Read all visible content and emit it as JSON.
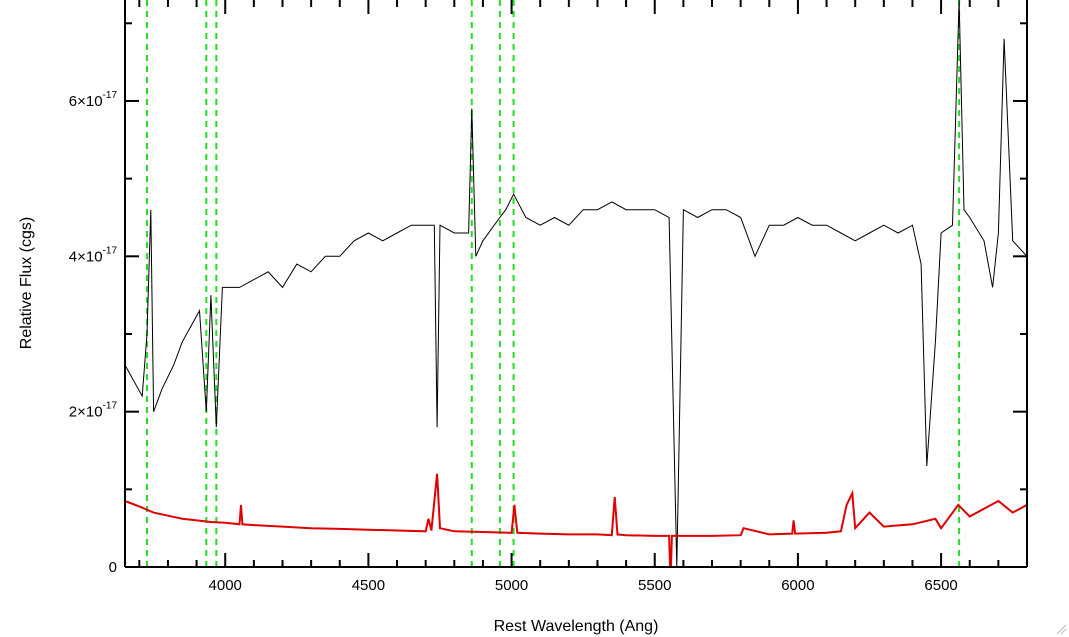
{
  "chart_data": {
    "type": "line",
    "xlabel": "Rest Wavelength (Ang)",
    "ylabel": "Relative Flux (cgs)",
    "xlim": [
      3650,
      6800
    ],
    "ylim": [
      0,
      7.3e-17
    ],
    "x_ticks": [
      4000,
      4500,
      5000,
      5500,
      6000,
      6500
    ],
    "y_ticks": [
      {
        "value": 0,
        "mantissa": "0",
        "exponent": ""
      },
      {
        "value": 2e-17,
        "mantissa": "2×10",
        "exponent": "-17"
      },
      {
        "value": 4e-17,
        "mantissa": "4×10",
        "exponent": "-17"
      },
      {
        "value": 6e-17,
        "mantissa": "6×10",
        "exponent": "-17"
      }
    ],
    "reference_lines_x": [
      3727,
      3934,
      3969,
      4861,
      4959,
      5007,
      6563
    ],
    "series": [
      {
        "color": "#000000",
        "points": [
          [
            3650,
            2.6e-17
          ],
          [
            3680,
            2.4e-17
          ],
          [
            3710,
            2.2e-17
          ],
          [
            3727,
            3e-17
          ],
          [
            3740,
            4.6e-17
          ],
          [
            3750,
            2e-17
          ],
          [
            3780,
            2.3e-17
          ],
          [
            3820,
            2.6e-17
          ],
          [
            3850,
            2.9e-17
          ],
          [
            3880,
            3.1e-17
          ],
          [
            3910,
            3.3e-17
          ],
          [
            3934,
            2e-17
          ],
          [
            3950,
            3.5e-17
          ],
          [
            3969,
            1.8e-17
          ],
          [
            3990,
            3.6e-17
          ],
          [
            4050,
            3.6e-17
          ],
          [
            4100,
            3.7e-17
          ],
          [
            4150,
            3.8e-17
          ],
          [
            4200,
            3.6e-17
          ],
          [
            4250,
            3.9e-17
          ],
          [
            4300,
            3.8e-17
          ],
          [
            4350,
            4e-17
          ],
          [
            4400,
            4e-17
          ],
          [
            4450,
            4.2e-17
          ],
          [
            4500,
            4.3e-17
          ],
          [
            4550,
            4.2e-17
          ],
          [
            4600,
            4.3e-17
          ],
          [
            4650,
            4.4e-17
          ],
          [
            4700,
            4.4e-17
          ],
          [
            4730,
            4.4e-17
          ],
          [
            4740,
            1.8e-17
          ],
          [
            4750,
            4.4e-17
          ],
          [
            4800,
            4.3e-17
          ],
          [
            4850,
            4.3e-17
          ],
          [
            4861,
            5.9e-17
          ],
          [
            4875,
            4e-17
          ],
          [
            4900,
            4.2e-17
          ],
          [
            4959,
            4.5e-17
          ],
          [
            4980,
            4.6e-17
          ],
          [
            5007,
            4.8e-17
          ],
          [
            5050,
            4.5e-17
          ],
          [
            5100,
            4.4e-17
          ],
          [
            5150,
            4.5e-17
          ],
          [
            5200,
            4.4e-17
          ],
          [
            5250,
            4.6e-17
          ],
          [
            5300,
            4.6e-17
          ],
          [
            5350,
            4.7e-17
          ],
          [
            5400,
            4.6e-17
          ],
          [
            5450,
            4.6e-17
          ],
          [
            5500,
            4.6e-17
          ],
          [
            5550,
            4.5e-17
          ],
          [
            5577,
            0.0
          ],
          [
            5600,
            4.6e-17
          ],
          [
            5650,
            4.5e-17
          ],
          [
            5700,
            4.6e-17
          ],
          [
            5750,
            4.6e-17
          ],
          [
            5800,
            4.5e-17
          ],
          [
            5850,
            4e-17
          ],
          [
            5900,
            4.4e-17
          ],
          [
            5950,
            4.4e-17
          ],
          [
            6000,
            4.5e-17
          ],
          [
            6050,
            4.4e-17
          ],
          [
            6100,
            4.4e-17
          ],
          [
            6150,
            4.3e-17
          ],
          [
            6200,
            4.2e-17
          ],
          [
            6250,
            4.3e-17
          ],
          [
            6300,
            4.4e-17
          ],
          [
            6350,
            4.3e-17
          ],
          [
            6400,
            4.4e-17
          ],
          [
            6430,
            3.9e-17
          ],
          [
            6450,
            1.3e-17
          ],
          [
            6480,
            2.9e-17
          ],
          [
            6500,
            4.3e-17
          ],
          [
            6540,
            4.4e-17
          ],
          [
            6563,
            7.3e-17
          ],
          [
            6580,
            4.6e-17
          ],
          [
            6600,
            4.5e-17
          ],
          [
            6650,
            4.2e-17
          ],
          [
            6680,
            3.6e-17
          ],
          [
            6700,
            4.3e-17
          ],
          [
            6720,
            6.8e-17
          ],
          [
            6750,
            4.2e-17
          ],
          [
            6800,
            4e-17
          ]
        ]
      },
      {
        "color": "#e00000",
        "points": [
          [
            3650,
            8.5e-18
          ],
          [
            3700,
            7.8e-18
          ],
          [
            3750,
            7e-18
          ],
          [
            3800,
            6.6e-18
          ],
          [
            3850,
            6.2e-18
          ],
          [
            3900,
            6e-18
          ],
          [
            3950,
            5.8e-18
          ],
          [
            4000,
            5.7e-18
          ],
          [
            4050,
            5.5e-18
          ],
          [
            4055,
            8e-18
          ],
          [
            4060,
            5.5e-18
          ],
          [
            4100,
            5.4e-18
          ],
          [
            4200,
            5.2e-18
          ],
          [
            4300,
            5e-18
          ],
          [
            4400,
            4.9e-18
          ],
          [
            4500,
            4.8e-18
          ],
          [
            4600,
            4.7e-18
          ],
          [
            4700,
            4.6e-18
          ],
          [
            4710,
            6.2e-18
          ],
          [
            4720,
            4.7e-18
          ],
          [
            4740,
            1.2e-17
          ],
          [
            4750,
            5e-18
          ],
          [
            4800,
            4.6e-18
          ],
          [
            4900,
            4.5e-18
          ],
          [
            5000,
            4.4e-18
          ],
          [
            5010,
            8e-18
          ],
          [
            5020,
            4.4e-18
          ],
          [
            5100,
            4.3e-18
          ],
          [
            5200,
            4.2e-18
          ],
          [
            5300,
            4.2e-18
          ],
          [
            5350,
            4.1e-18
          ],
          [
            5360,
            9e-18
          ],
          [
            5370,
            4.2e-18
          ],
          [
            5400,
            4.1e-18
          ],
          [
            5500,
            4e-18
          ],
          [
            5550,
            4e-18
          ],
          [
            5555,
            -2e-18
          ],
          [
            5560,
            4e-18
          ],
          [
            5600,
            4e-18
          ],
          [
            5700,
            4e-18
          ],
          [
            5800,
            4.1e-18
          ],
          [
            5810,
            5e-18
          ],
          [
            5900,
            4.2e-18
          ],
          [
            5980,
            4.3e-18
          ],
          [
            5985,
            6e-18
          ],
          [
            5990,
            4.3e-18
          ],
          [
            6100,
            4.4e-18
          ],
          [
            6150,
            4.6e-18
          ],
          [
            6170,
            8e-18
          ],
          [
            6190,
            9.5e-18
          ],
          [
            6200,
            5e-18
          ],
          [
            6250,
            7e-18
          ],
          [
            6300,
            5.2e-18
          ],
          [
            6400,
            5.5e-18
          ],
          [
            6480,
            6.2e-18
          ],
          [
            6500,
            5e-18
          ],
          [
            6560,
            8e-18
          ],
          [
            6600,
            6.5e-18
          ],
          [
            6650,
            7.5e-18
          ],
          [
            6700,
            8.5e-18
          ],
          [
            6750,
            7e-18
          ],
          [
            6800,
            8e-18
          ]
        ]
      }
    ]
  }
}
